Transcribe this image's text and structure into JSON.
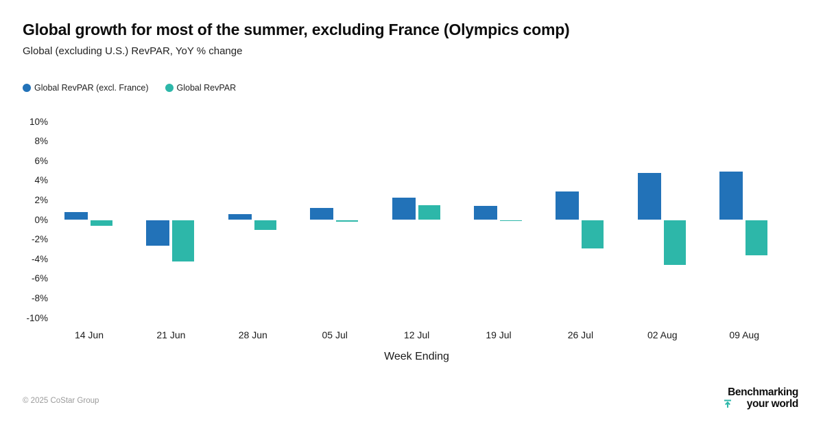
{
  "title": "Global growth for most of the summer, excluding France (Olympics comp)",
  "subtitle": "Global (excluding U.S.) RevPAR, YoY % change",
  "legend": [
    {
      "label": "Global RevPAR (excl. France)",
      "color": "#2272b8"
    },
    {
      "label": "Global RevPAR",
      "color": "#2db7a9"
    }
  ],
  "chart_data": {
    "type": "bar",
    "categories": [
      "14 Jun",
      "21 Jun",
      "28 Jun",
      "05 Jul",
      "12 Jul",
      "19 Jul",
      "26 Jul",
      "02 Aug",
      "09 Aug"
    ],
    "series": [
      {
        "name": "Global RevPAR (excl. France)",
        "color": "#2272b8",
        "values": [
          0.8,
          -2.6,
          0.6,
          1.2,
          2.3,
          1.4,
          2.9,
          4.8,
          4.9
        ]
      },
      {
        "name": "Global RevPAR",
        "color": "#2db7a9",
        "values": [
          -0.6,
          -4.2,
          -1.0,
          -0.2,
          1.5,
          -0.1,
          -2.9,
          -4.6,
          -3.6
        ]
      }
    ],
    "title": "Global growth for most of the summer, excluding France (Olympics comp)",
    "xlabel": "Week Ending",
    "ylabel": "",
    "ylim": [
      -10,
      10
    ],
    "ytick_step": 2,
    "ytick_suffix": "%",
    "grid": false,
    "legend_position": "top-left"
  },
  "footer": {
    "copyright": "© 2025 CoStar Group",
    "logo_line1": "Benchmarking",
    "logo_line2": "your world",
    "logo_icon": "up-arrow-to-bar-icon",
    "logo_accent_color": "#2db7a9"
  }
}
